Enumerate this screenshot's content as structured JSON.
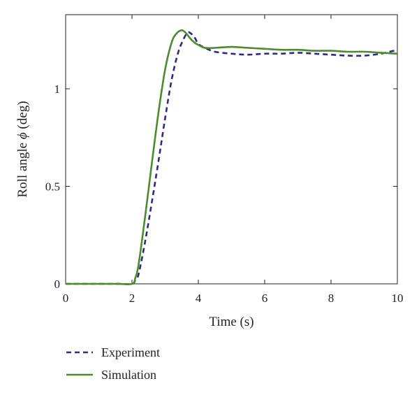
{
  "chart_data": {
    "type": "line",
    "title": "",
    "xlabel": "Time (s)",
    "ylabel_prefix": "Roll angle ",
    "ylabel_symbol": "ϕ",
    "ylabel_suffix": " (deg)",
    "xlim": [
      0,
      10
    ],
    "ylim": [
      0,
      1.38
    ],
    "xticks": [
      0,
      2,
      4,
      6,
      8,
      10
    ],
    "yticks": [
      0,
      0.5,
      1
    ],
    "xtick_labels": [
      "0",
      "2",
      "4",
      "6",
      "8",
      "10"
    ],
    "ytick_labels": [
      "0",
      "0.5",
      "1"
    ],
    "grid": false,
    "legend_position": "bottom-left, below plot",
    "series": [
      {
        "name": "Experiment",
        "color": "#2b2b7f",
        "style": "dashed",
        "x": [
          0,
          1.5,
          2.0,
          2.1,
          2.2,
          2.4,
          2.6,
          2.8,
          3.0,
          3.2,
          3.4,
          3.6,
          3.7,
          3.8,
          3.9,
          4.0,
          4.2,
          4.5,
          5.0,
          5.5,
          6.0,
          6.5,
          7.0,
          7.5,
          8.0,
          8.5,
          9.0,
          9.5,
          10.0
        ],
        "y": [
          0,
          0,
          0,
          0.02,
          0.05,
          0.22,
          0.42,
          0.63,
          0.85,
          1.05,
          1.19,
          1.27,
          1.29,
          1.28,
          1.26,
          1.23,
          1.21,
          1.19,
          1.18,
          1.175,
          1.18,
          1.18,
          1.185,
          1.18,
          1.175,
          1.17,
          1.17,
          1.18,
          1.2
        ]
      },
      {
        "name": "Simulation",
        "color": "#4e8a2e",
        "style": "solid",
        "x": [
          0,
          1.5,
          2.0,
          2.1,
          2.2,
          2.4,
          2.6,
          2.8,
          3.0,
          3.2,
          3.35,
          3.5,
          3.6,
          3.7,
          3.8,
          3.9,
          4.0,
          4.2,
          4.5,
          5.0,
          5.5,
          6.0,
          6.5,
          7.0,
          7.5,
          8.0,
          8.5,
          9.0,
          9.5,
          10.0
        ],
        "y": [
          0,
          0,
          0,
          0.03,
          0.1,
          0.35,
          0.62,
          0.88,
          1.1,
          1.24,
          1.285,
          1.3,
          1.29,
          1.27,
          1.25,
          1.235,
          1.225,
          1.21,
          1.21,
          1.215,
          1.21,
          1.205,
          1.2,
          1.2,
          1.195,
          1.195,
          1.19,
          1.19,
          1.185,
          1.18
        ]
      }
    ]
  }
}
